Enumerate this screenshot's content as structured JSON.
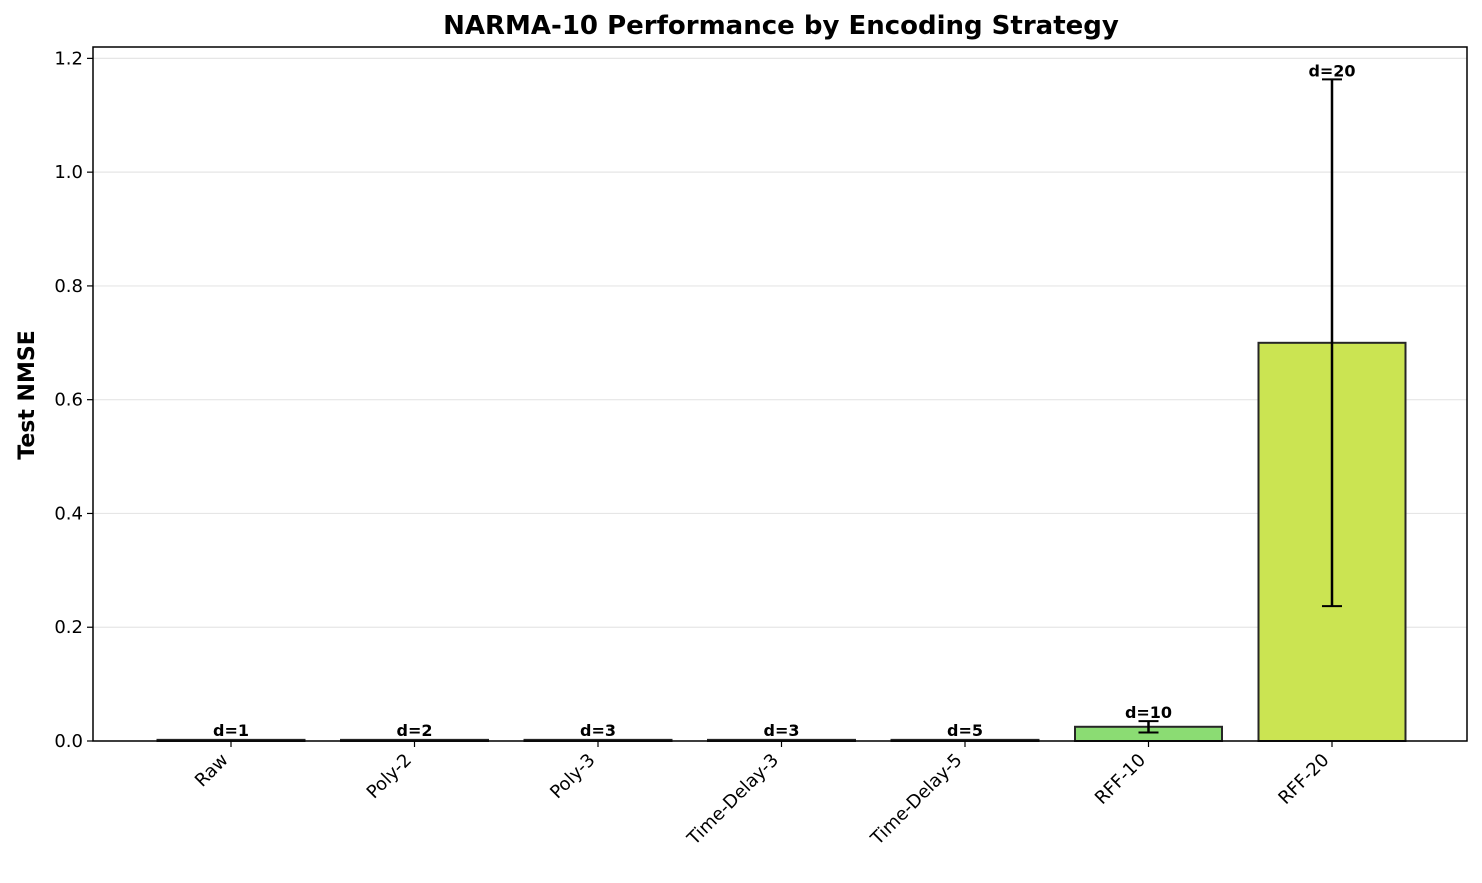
{
  "chart_data": {
    "type": "bar",
    "title": "NARMA-10 Performance by Encoding Strategy",
    "xlabel": "",
    "ylabel": "Test NMSE",
    "ylim": [
      0,
      1.22
    ],
    "yticks": [
      "0.0",
      "0.2",
      "0.4",
      "0.6",
      "0.8",
      "1.0",
      "1.2"
    ],
    "grid": "y",
    "categories": [
      "Raw",
      "Poly-2",
      "Poly-3",
      "Time-Delay-3",
      "Time-Delay-5",
      "RFF-10",
      "RFF-20"
    ],
    "values": [
      0.002,
      0.002,
      0.002,
      0.002,
      0.002,
      0.025,
      0.7
    ],
    "errors": [
      0,
      0,
      0,
      0,
      0,
      0.01,
      0.463
    ],
    "annotations": [
      "d=1",
      "d=2",
      "d=3",
      "d=3",
      "d=5",
      "d=10",
      "d=20"
    ],
    "colors": [
      "#3b528b",
      "#2c728e",
      "#21918c",
      "#28ae80",
      "#5ec962",
      "#8bdc73",
      "#cbe452"
    ],
    "edge_color": "#262626"
  }
}
